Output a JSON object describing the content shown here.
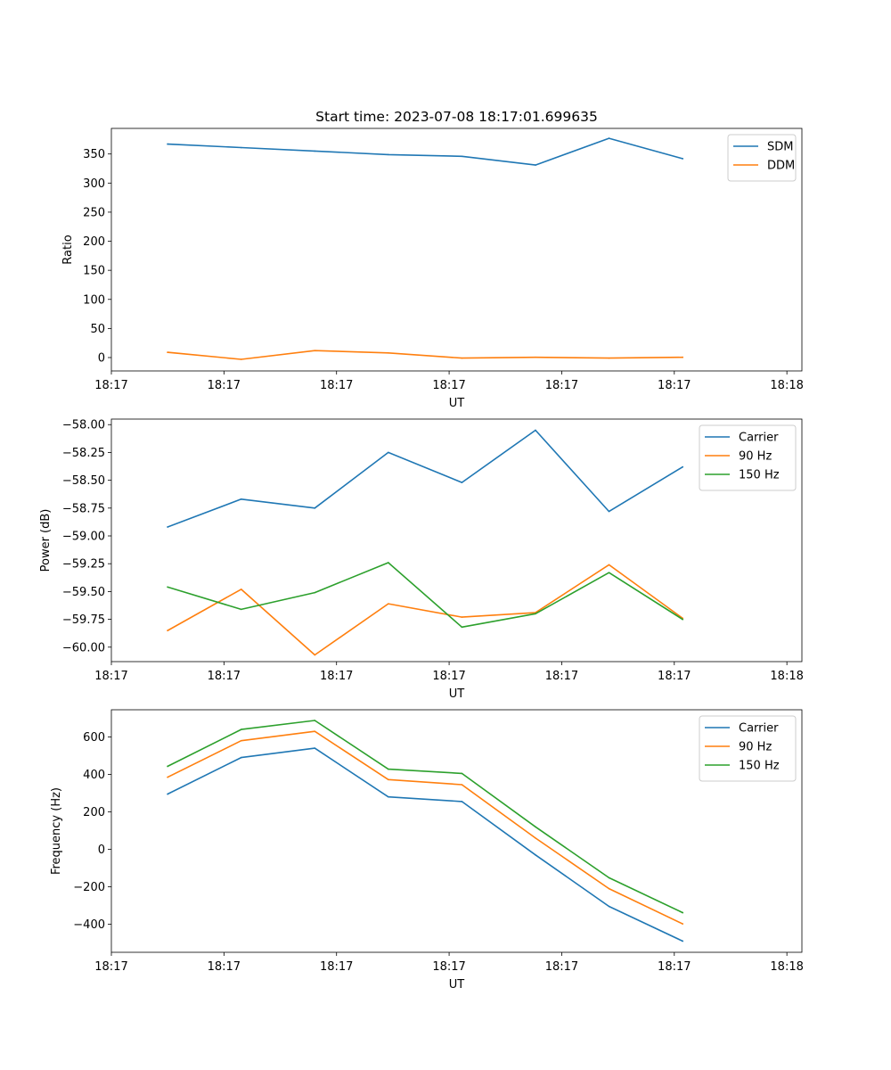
{
  "chart_data": [
    {
      "type": "line",
      "title": "Start time: 2023-07-08 18:17:01.699635",
      "xlabel": "UT",
      "ylabel": "Ratio",
      "xlim": [
        0,
        9.2
      ],
      "ylim": [
        -23,
        394
      ],
      "x_ticks": [
        {
          "value": 0,
          "label": "18:17"
        },
        {
          "value": 1.5,
          "label": "18:17"
        },
        {
          "value": 3,
          "label": "18:17"
        },
        {
          "value": 4.5,
          "label": "18:17"
        },
        {
          "value": 6,
          "label": "18:17"
        },
        {
          "value": 7.5,
          "label": "18:17"
        },
        {
          "value": 9,
          "label": "18:18"
        }
      ],
      "y_ticks": [
        0,
        50,
        100,
        150,
        200,
        250,
        300,
        350
      ],
      "y_tick_decimals": 0,
      "x": [
        0.75,
        1.73,
        2.71,
        3.69,
        4.67,
        5.65,
        6.63,
        7.61
      ],
      "legend_position": "top-right",
      "series": [
        {
          "name": "SDM",
          "color": "#1f77b4",
          "values": [
            367,
            361,
            355,
            349,
            346,
            331,
            377,
            342
          ]
        },
        {
          "name": "DDM",
          "color": "#ff7f0e",
          "values": [
            9,
            -3,
            12,
            8,
            -1,
            0.5,
            -1,
            0.5
          ]
        }
      ]
    },
    {
      "type": "line",
      "title": "",
      "xlabel": "UT",
      "ylabel": "Power (dB)",
      "xlim": [
        0,
        9.2
      ],
      "ylim": [
        -60.13,
        -57.95
      ],
      "x_ticks": [
        {
          "value": 0,
          "label": "18:17"
        },
        {
          "value": 1.5,
          "label": "18:17"
        },
        {
          "value": 3,
          "label": "18:17"
        },
        {
          "value": 4.5,
          "label": "18:17"
        },
        {
          "value": 6,
          "label": "18:17"
        },
        {
          "value": 7.5,
          "label": "18:17"
        },
        {
          "value": 9,
          "label": "18:18"
        }
      ],
      "y_ticks": [
        -60.0,
        -59.75,
        -59.5,
        -59.25,
        -59.0,
        -58.75,
        -58.5,
        -58.25,
        -58.0
      ],
      "y_tick_decimals": 2,
      "x": [
        0.75,
        1.73,
        2.71,
        3.69,
        4.67,
        5.65,
        6.63,
        7.61
      ],
      "legend_position": "top-right",
      "series": [
        {
          "name": "Carrier",
          "color": "#1f77b4",
          "values": [
            -58.92,
            -58.67,
            -58.75,
            -58.25,
            -58.52,
            -58.05,
            -58.78,
            -58.38
          ]
        },
        {
          "name": "90 Hz",
          "color": "#ff7f0e",
          "values": [
            -59.85,
            -59.48,
            -60.07,
            -59.61,
            -59.73,
            -59.69,
            -59.26,
            -59.74
          ]
        },
        {
          "name": "150 Hz",
          "color": "#2ca02c",
          "values": [
            -59.46,
            -59.66,
            -59.51,
            -59.24,
            -59.82,
            -59.7,
            -59.33,
            -59.75
          ]
        }
      ]
    },
    {
      "type": "line",
      "title": "",
      "xlabel": "UT",
      "ylabel": "Frequency (Hz)",
      "xlim": [
        0,
        9.2
      ],
      "ylim": [
        -550,
        745
      ],
      "x_ticks": [
        {
          "value": 0,
          "label": "18:17"
        },
        {
          "value": 1.5,
          "label": "18:17"
        },
        {
          "value": 3,
          "label": "18:17"
        },
        {
          "value": 4.5,
          "label": "18:17"
        },
        {
          "value": 6,
          "label": "18:17"
        },
        {
          "value": 7.5,
          "label": "18:17"
        },
        {
          "value": 9,
          "label": "18:18"
        }
      ],
      "y_ticks": [
        -400,
        -200,
        0,
        200,
        400,
        600
      ],
      "y_tick_decimals": 0,
      "x": [
        0.75,
        1.73,
        2.71,
        3.69,
        4.67,
        5.65,
        6.63,
        7.61
      ],
      "legend_position": "top-right",
      "series": [
        {
          "name": "Carrier",
          "color": "#1f77b4",
          "values": [
            295,
            490,
            540,
            280,
            255,
            -30,
            -305,
            -490
          ]
        },
        {
          "name": "90 Hz",
          "color": "#ff7f0e",
          "values": [
            385,
            580,
            630,
            372,
            345,
            60,
            -210,
            -398
          ]
        },
        {
          "name": "150 Hz",
          "color": "#2ca02c",
          "values": [
            443,
            640,
            688,
            428,
            405,
            120,
            -152,
            -338
          ]
        }
      ]
    }
  ]
}
